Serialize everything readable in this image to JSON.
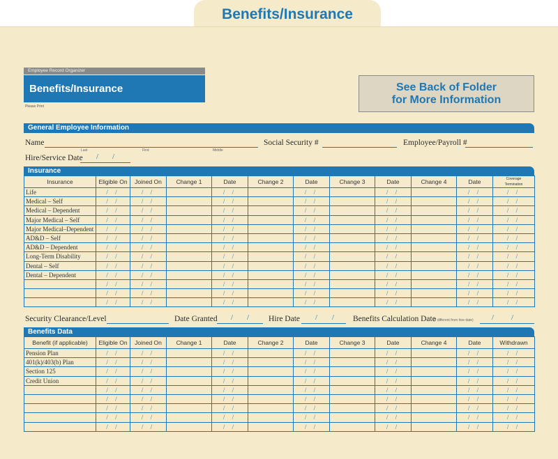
{
  "tab_title": "Benefits/Insurance",
  "organizer_label": "Employee Record Organizer",
  "form_title": "Benefits/Insurance",
  "please_print": "Please Print",
  "see_back": [
    "See Back of Folder",
    "for More Information"
  ],
  "general": {
    "header": "General Employee Information",
    "name_label": "Name",
    "name_sub": [
      "Last",
      "First",
      "Middle"
    ],
    "ssn_label": "Social Security #",
    "emp_label": "Employee/Payroll #",
    "hire_label": "Hire/Service Date"
  },
  "insurance": {
    "header": "Insurance",
    "columns": [
      "Insurance",
      "Eligible On",
      "Joined On",
      "Change 1",
      "Date",
      "Change 2",
      "Date",
      "Change 3",
      "Date",
      "Change 4",
      "Date",
      "Coverage Termination"
    ],
    "rows": [
      "Life",
      "Medical – Self",
      "Medical – Dependent",
      "Major Medical – Self",
      "Major Medical–Dependent",
      "AD&D – Self",
      "AD&D – Dependent",
      "Long-Term Disability",
      "Dental – Self",
      "Dental – Dependent",
      "",
      "",
      ""
    ]
  },
  "security": {
    "clearance_label": "Security Clearance/Level",
    "date_granted_label": "Date Granted",
    "hire_date_label": "Hire Date",
    "calc_label": "Benefits Calculation Date",
    "calc_note": "(If different from hire date)"
  },
  "benefits": {
    "header": "Benefits Data",
    "columns": [
      "Benefit (if applicable)",
      "Eligible On",
      "Joined On",
      "Change 1",
      "Date",
      "Change 2",
      "Date",
      "Change 3",
      "Date",
      "Change 4",
      "Date",
      "Withdrawn"
    ],
    "rows": [
      "Pension Plan",
      "401(k)/403(b) Plan",
      "Section 125",
      "Credit Union",
      "",
      "",
      "",
      "",
      ""
    ]
  },
  "date_mark": "/ /",
  "colors": {
    "accent": "#1f77b4",
    "folder": "#f5ebcb",
    "gray": "#8a8a88"
  }
}
